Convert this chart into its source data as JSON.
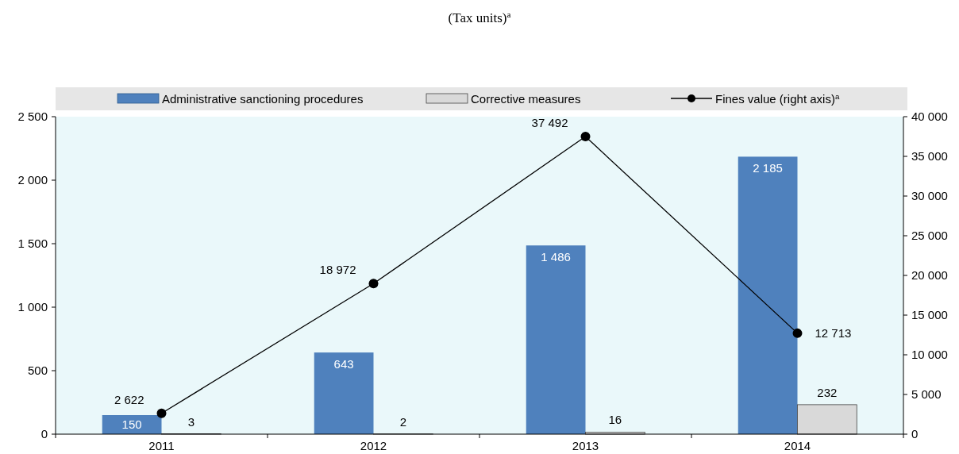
{
  "chart_data": {
    "type": "bar",
    "title": "(Tax units)$^{a}$",
    "categories": [
      "2011",
      "2012",
      "2013",
      "2014"
    ],
    "series": [
      {
        "name": "Administrative sanctioning procedures",
        "color": "#4f81bd",
        "values": [
          150,
          643,
          1486,
          2185
        ],
        "value_labels": [
          "150",
          "643",
          "1 486",
          "2 185"
        ]
      },
      {
        "name": "Corrective measures",
        "color": "#d9d9d9",
        "values": [
          3,
          2,
          16,
          232
        ],
        "value_labels": [
          "3",
          "2",
          "16",
          "232"
        ]
      },
      {
        "name": "Fines value (right axis)$^{a}$",
        "type": "line",
        "axis": "y2",
        "color": "#000000",
        "marker": "circle",
        "values": [
          2622,
          18972,
          37492,
          12713
        ],
        "value_labels": [
          "2 622",
          "18 972",
          "37 492",
          "12 713"
        ]
      }
    ],
    "ylim": [
      0,
      2500
    ],
    "yticks": [
      0,
      500,
      {
        "value": 1000,
        "label": "1 000"
      },
      {
        "value": 1500,
        "label": "1 500"
      },
      {
        "value": 2000,
        "label": "2 000"
      },
      {
        "value": 2500,
        "label": "2 500"
      }
    ],
    "y2lim": [
      0,
      40000
    ],
    "y2ticks": [
      0,
      {
        "value": 5000,
        "label": "5 000"
      },
      {
        "value": 10000,
        "label": "10 000"
      },
      {
        "value": 15000,
        "label": "15 000"
      },
      {
        "value": 20000,
        "label": "20 000"
      },
      {
        "value": 25000,
        "label": "25 000"
      },
      {
        "value": 30000,
        "label": "30 000"
      },
      {
        "value": 35000,
        "label": "35 000"
      },
      {
        "value": 40000,
        "label": "40 000"
      }
    ],
    "legend": "top"
  }
}
